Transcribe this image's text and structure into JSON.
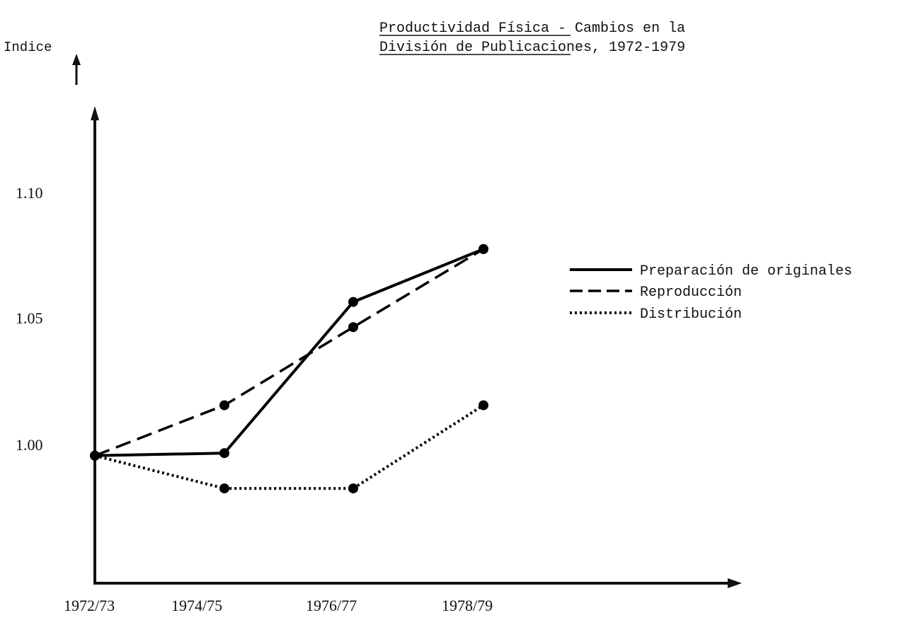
{
  "chart_data": {
    "type": "line",
    "title": "Productividad Física - Cambios en la División de Publicaciones, 1972-1979",
    "title_lines": [
      "Productividad Física - Cambios en la",
      "División de Publicaciones, 1972-1979"
    ],
    "xlabel": "",
    "ylabel": "Indice",
    "categories": [
      "1972/73",
      "1974/75",
      "1976/77",
      "1978/79"
    ],
    "y_ticks": [
      "1.00",
      "1.05",
      "1.10"
    ],
    "ylim": [
      0.955,
      1.13
    ],
    "grid": false,
    "legend_position": "right",
    "series": [
      {
        "name": "Preparación de originales",
        "style": "solid",
        "color": "#000000",
        "values": [
          0.995,
          0.996,
          1.056,
          1.077
        ]
      },
      {
        "name": "Reproducción",
        "style": "dashed",
        "color": "#000000",
        "values": [
          0.995,
          1.015,
          1.046,
          1.077
        ]
      },
      {
        "name": "Distribución",
        "style": "dotted",
        "color": "#000000",
        "values": [
          0.995,
          0.982,
          0.982,
          1.015
        ]
      }
    ]
  }
}
